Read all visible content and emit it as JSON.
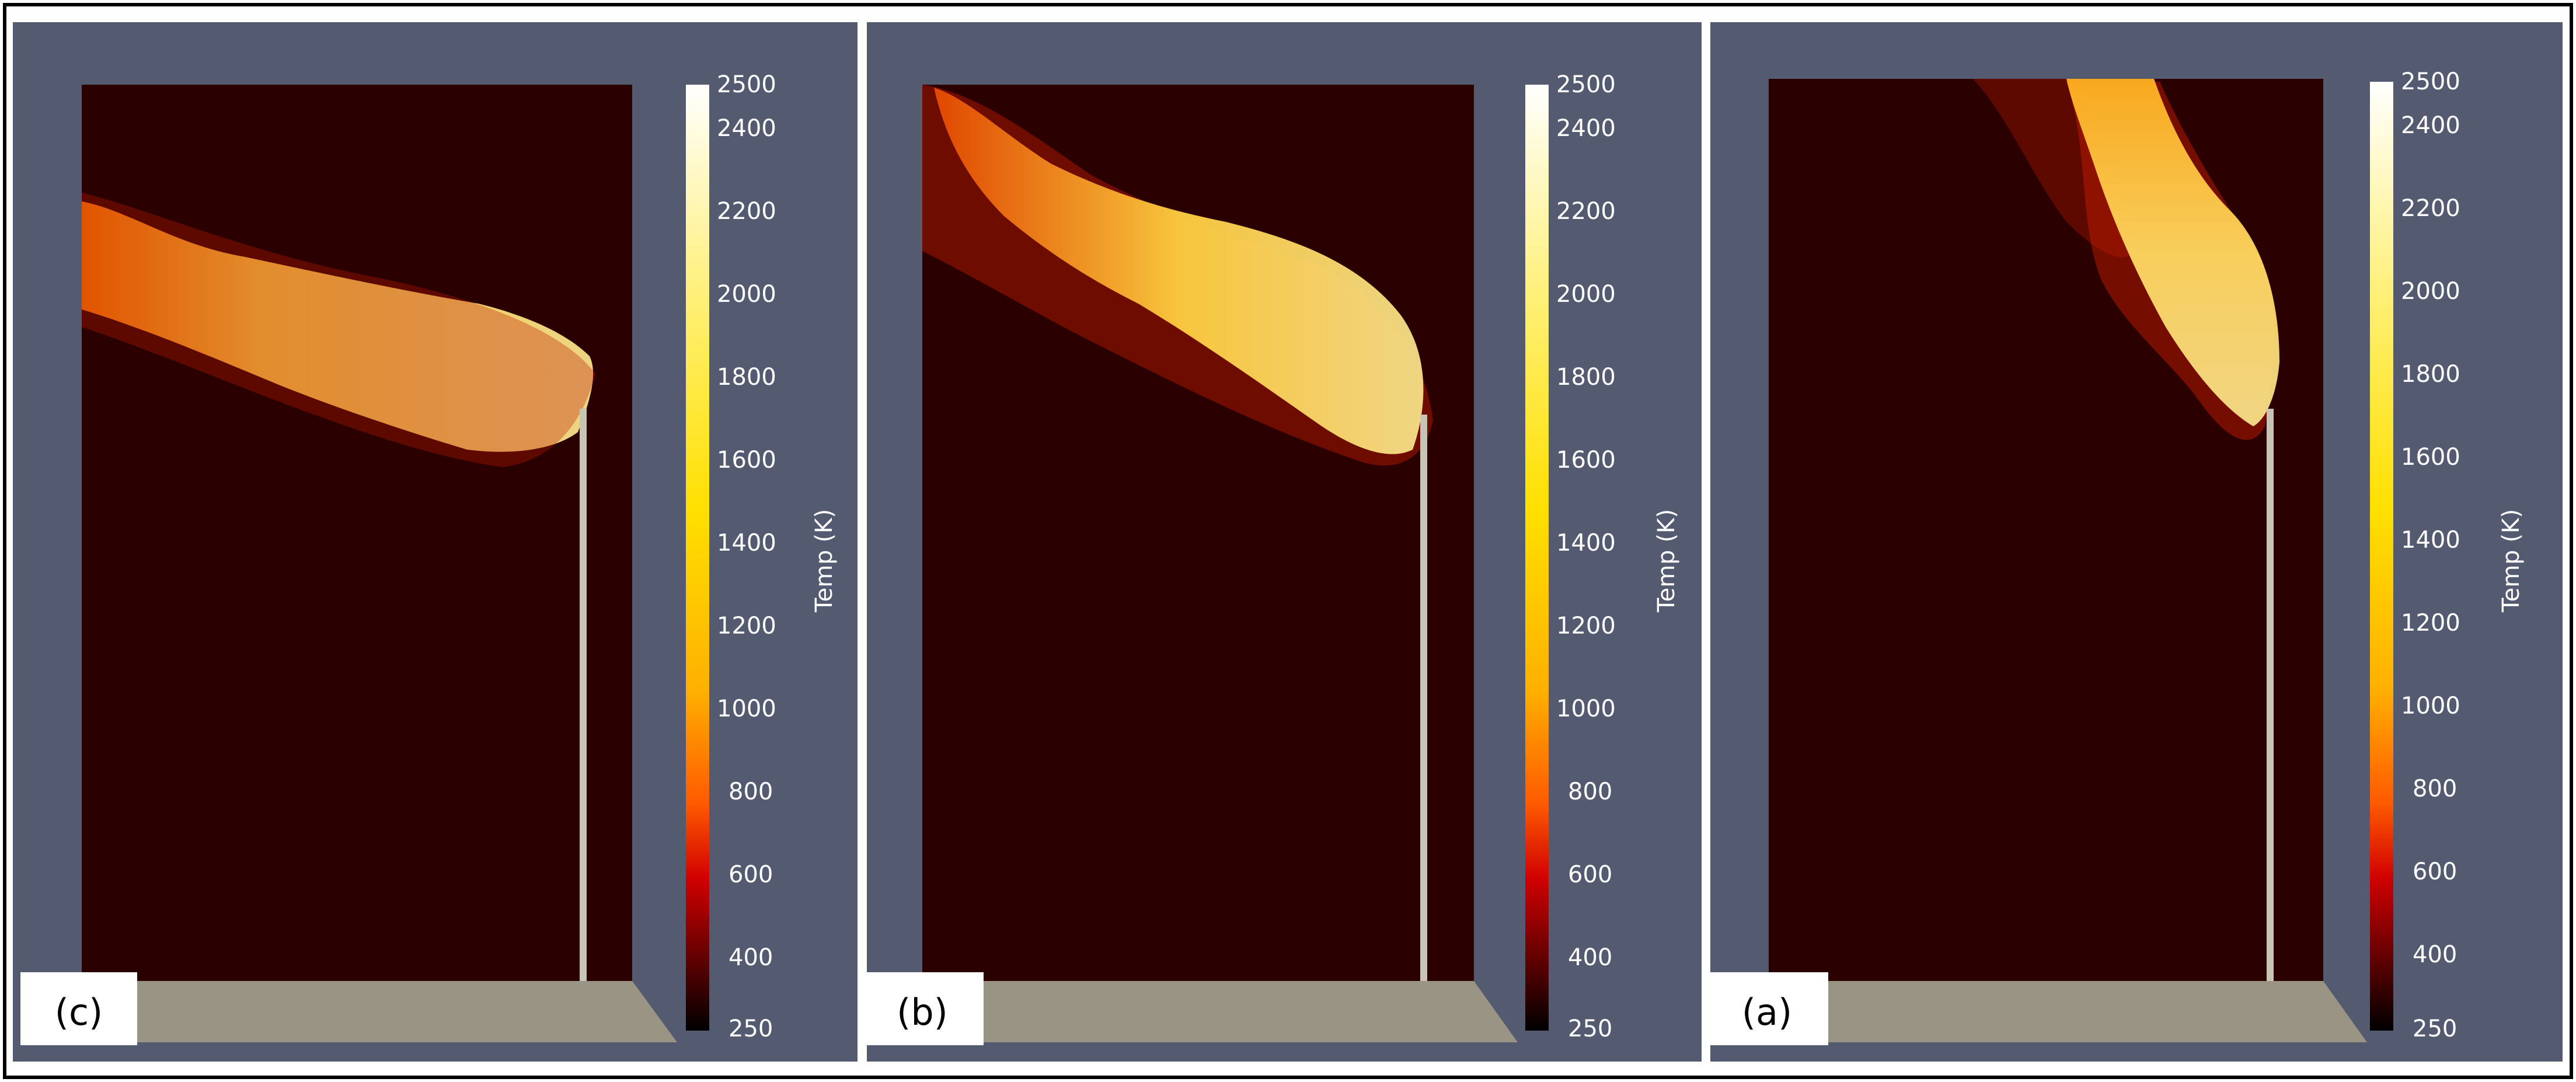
{
  "colorbar": {
    "title": "Temp (K)",
    "ticks": [
      "2500",
      "2400",
      "2200",
      "2000",
      "1800",
      "1600",
      "1400",
      "1200",
      "1000",
      "800",
      "600",
      "400",
      "250"
    ]
  },
  "panels": [
    {
      "label": "(c)"
    },
    {
      "label": "(b)"
    },
    {
      "label": "(a)"
    }
  ],
  "colors": {
    "background": "#545a70",
    "domain": "#2a0000",
    "ground": "#9a9485",
    "stack": "#c8c4b4",
    "scale_stops": [
      "#000000",
      "#5a0000",
      "#d00000",
      "#ff6000",
      "#ffb000",
      "#ffe000",
      "#fff060",
      "#ffffff"
    ]
  }
}
